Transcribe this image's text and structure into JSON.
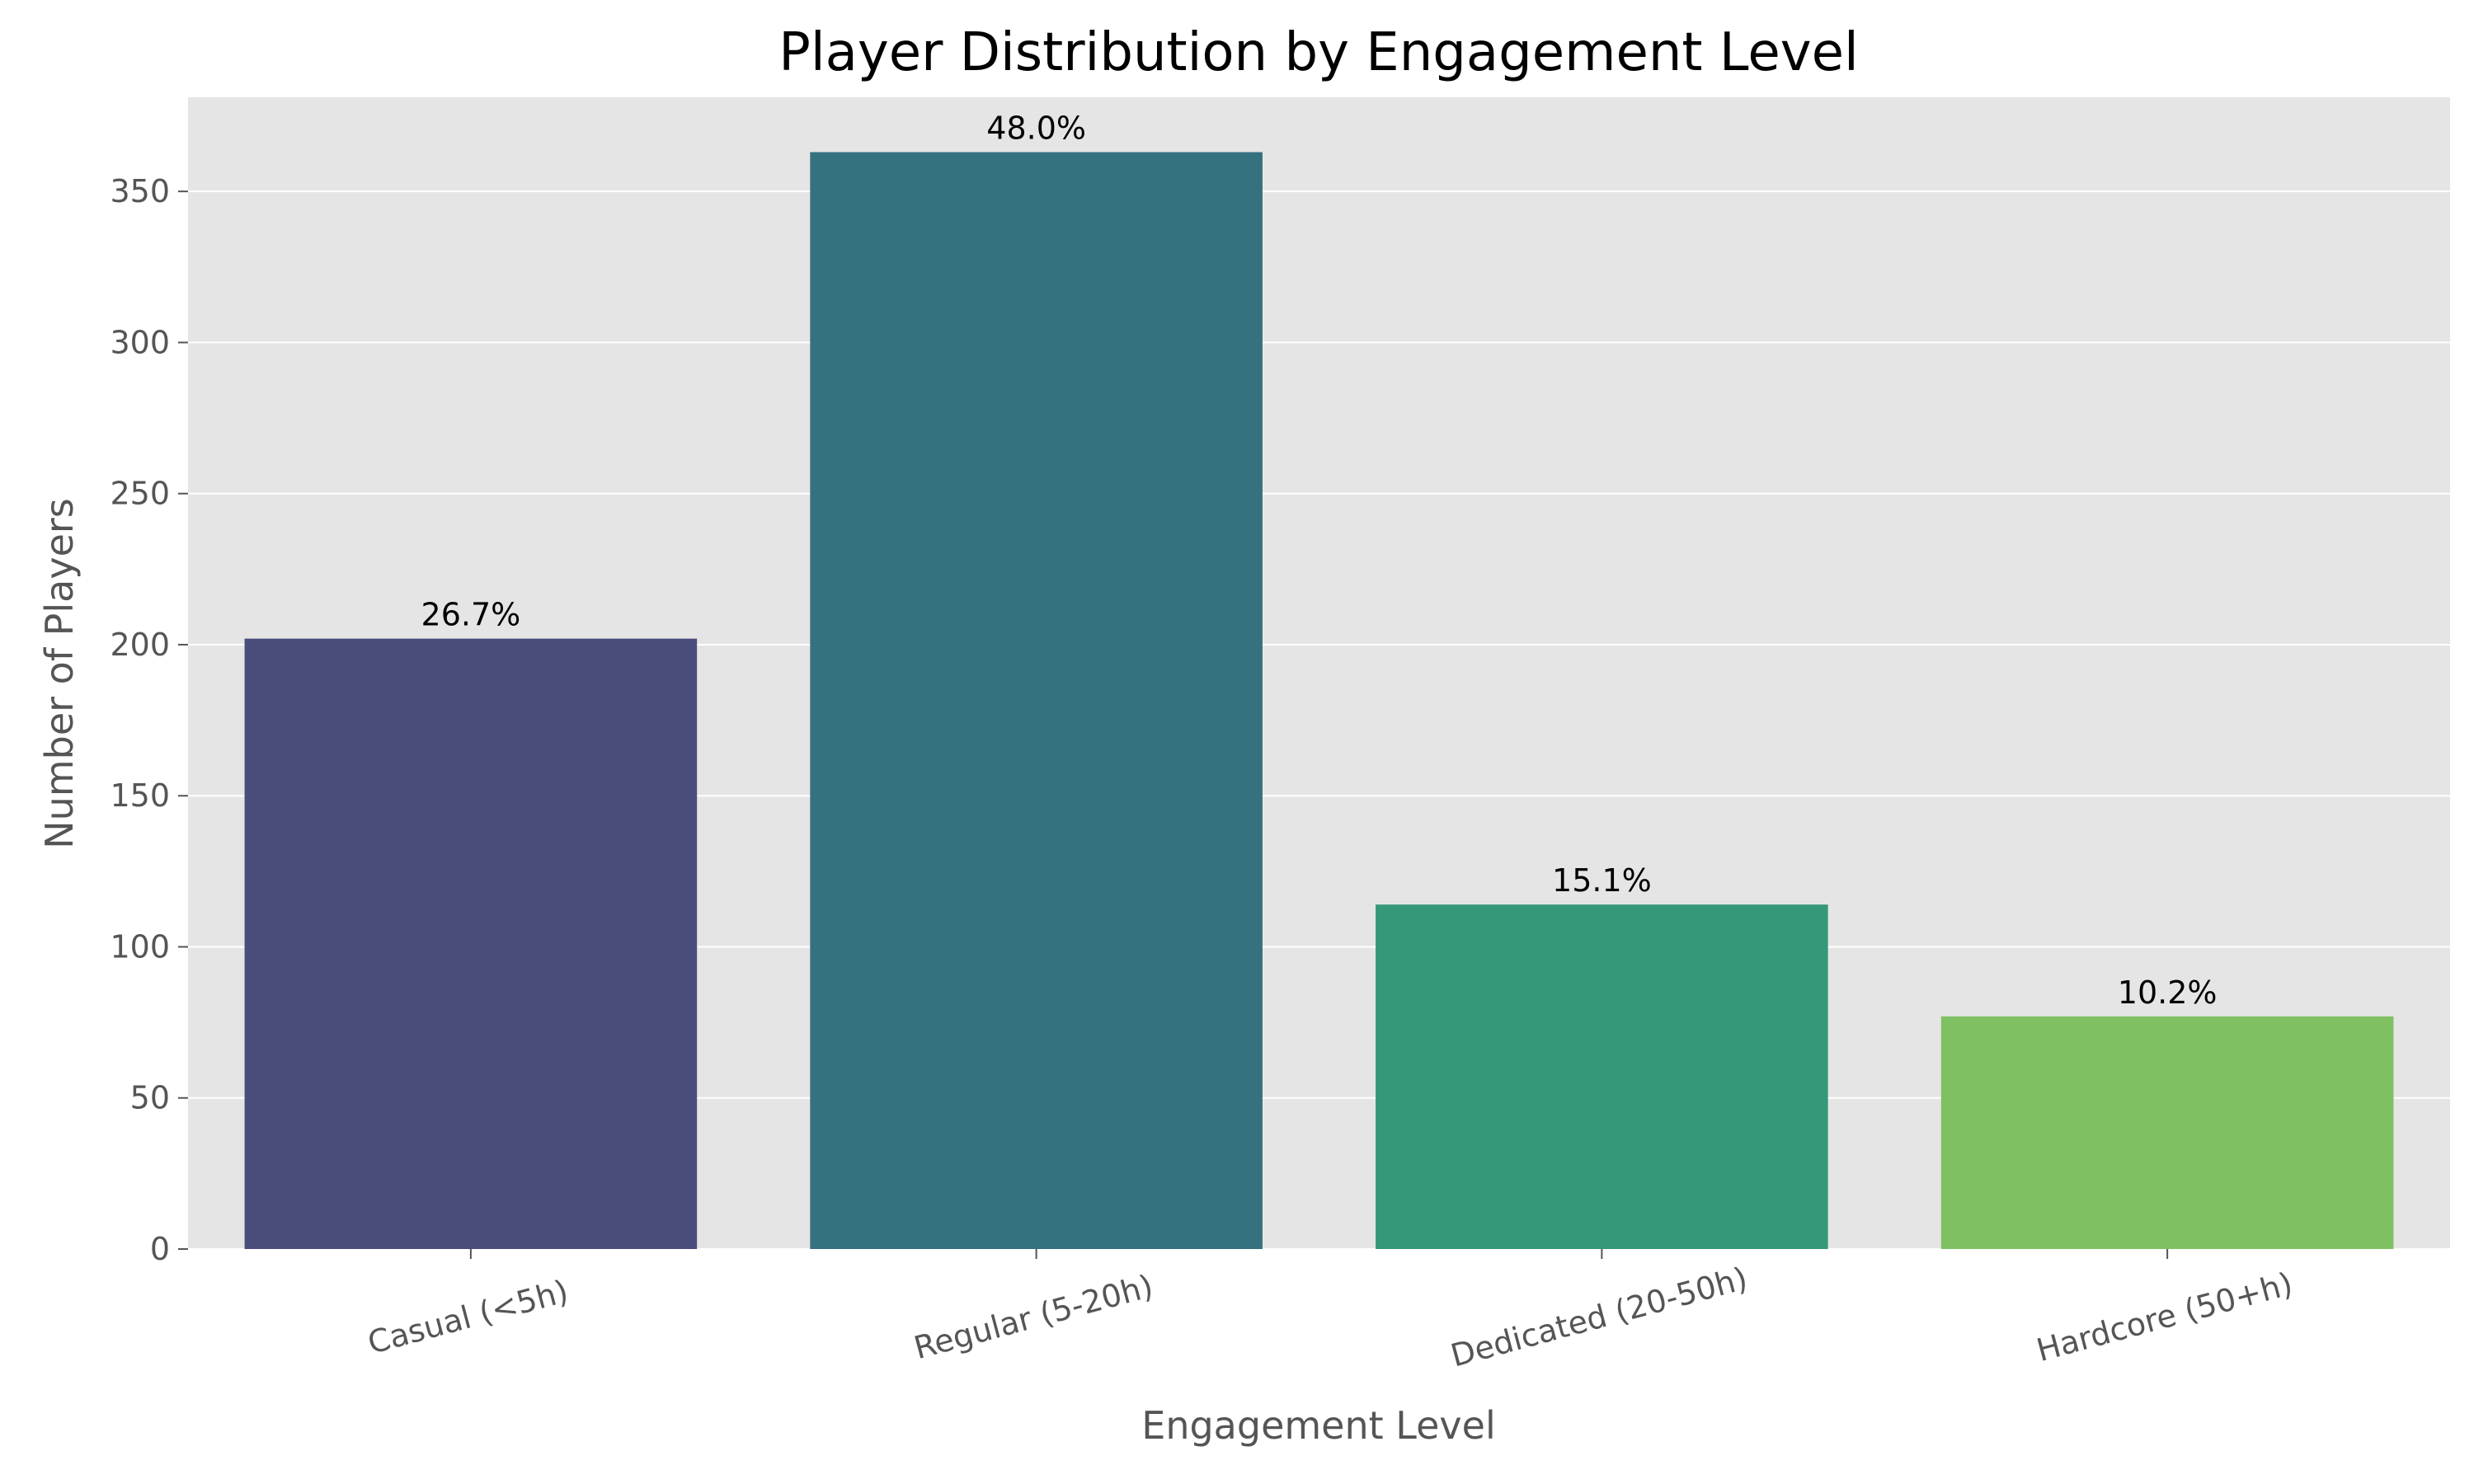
{
  "chart_data": {
    "type": "bar",
    "title": "Player Distribution by Engagement Level",
    "xlabel": "Engagement Level",
    "ylabel": "Number of Players",
    "categories": [
      "Casual (<5h)",
      "Regular (5-20h)",
      "Dedicated (20-50h)",
      "Hardcore (50+h)"
    ],
    "values": [
      202,
      363,
      114,
      77
    ],
    "data_labels": [
      "26.7%",
      "48.0%",
      "15.1%",
      "10.2%"
    ],
    "colors": [
      "#4a4c7c",
      "#36717f",
      "#35987b",
      "#7fc162"
    ],
    "yticks": [
      0,
      50,
      100,
      150,
      200,
      250,
      300,
      350
    ],
    "ylim": [
      0,
      381.15
    ],
    "grid": true,
    "legend": "none",
    "background": "#e5e5e5",
    "xtick_rotation": 15
  }
}
